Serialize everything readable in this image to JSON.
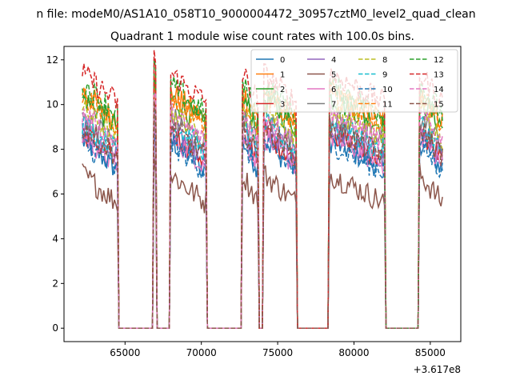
{
  "chart_data": {
    "type": "line",
    "suptitle": "n file: modeM0/AS1A10_058T10_9000004472_30957cztM0_level2_quad_clean",
    "title": "Quadrant 1 module wise count rates with 100.0s bins.",
    "xlabel": "",
    "ylabel": "",
    "x_offset_label": "+3.617e8",
    "xlim": [
      61000,
      87000
    ],
    "ylim": [
      -0.6,
      12.6
    ],
    "xticks": [
      65000,
      70000,
      75000,
      80000,
      85000
    ],
    "xtick_labels": [
      "65000",
      "70000",
      "75000",
      "80000",
      "85000"
    ],
    "yticks": [
      0,
      2,
      4,
      6,
      8,
      10,
      12
    ],
    "ytick_labels": [
      "0",
      "2",
      "4",
      "6",
      "8",
      "10",
      "12"
    ],
    "legend_position": "top-right",
    "legend_columns": 4,
    "grid": false,
    "bin_width_s": 100,
    "observation_segments": [
      [
        62200,
        64500
      ],
      [
        66850,
        67050
      ],
      [
        67950,
        70300
      ],
      [
        72700,
        73750
      ],
      [
        74100,
        76200
      ],
      [
        78400,
        82000
      ],
      [
        84300,
        85800
      ]
    ],
    "series": [
      {
        "name": "0",
        "color": "#1f77b4",
        "dashed": false,
        "level": 7.4
      },
      {
        "name": "1",
        "color": "#ff7f0e",
        "dashed": false,
        "level": 9.6
      },
      {
        "name": "2",
        "color": "#2ca02c",
        "dashed": false,
        "level": 9.3
      },
      {
        "name": "3",
        "color": "#d62728",
        "dashed": false,
        "level": 7.8
      },
      {
        "name": "4",
        "color": "#9467bd",
        "dashed": false,
        "level": 7.9
      },
      {
        "name": "5",
        "color": "#8c564b",
        "dashed": false,
        "level": 5.9
      },
      {
        "name": "6",
        "color": "#e377c2",
        "dashed": false,
        "level": 7.6
      },
      {
        "name": "7",
        "color": "#7f7f7f",
        "dashed": false,
        "level": 8.5
      },
      {
        "name": "8",
        "color": "#bcbd22",
        "dashed": true,
        "level": 8.8
      },
      {
        "name": "9",
        "color": "#17becf",
        "dashed": true,
        "level": 8.2
      },
      {
        "name": "10",
        "color": "#1f77b4",
        "dashed": true,
        "level": 7.3
      },
      {
        "name": "11",
        "color": "#ff7f0e",
        "dashed": true,
        "level": 9.4
      },
      {
        "name": "12",
        "color": "#2ca02c",
        "dashed": true,
        "level": 9.9
      },
      {
        "name": "13",
        "color": "#d62728",
        "dashed": true,
        "level": 10.4
      },
      {
        "name": "14",
        "color": "#e377c2",
        "dashed": true,
        "level": 8.6
      },
      {
        "name": "15",
        "color": "#8c564b",
        "dashed": true,
        "level": 8.0
      }
    ]
  }
}
